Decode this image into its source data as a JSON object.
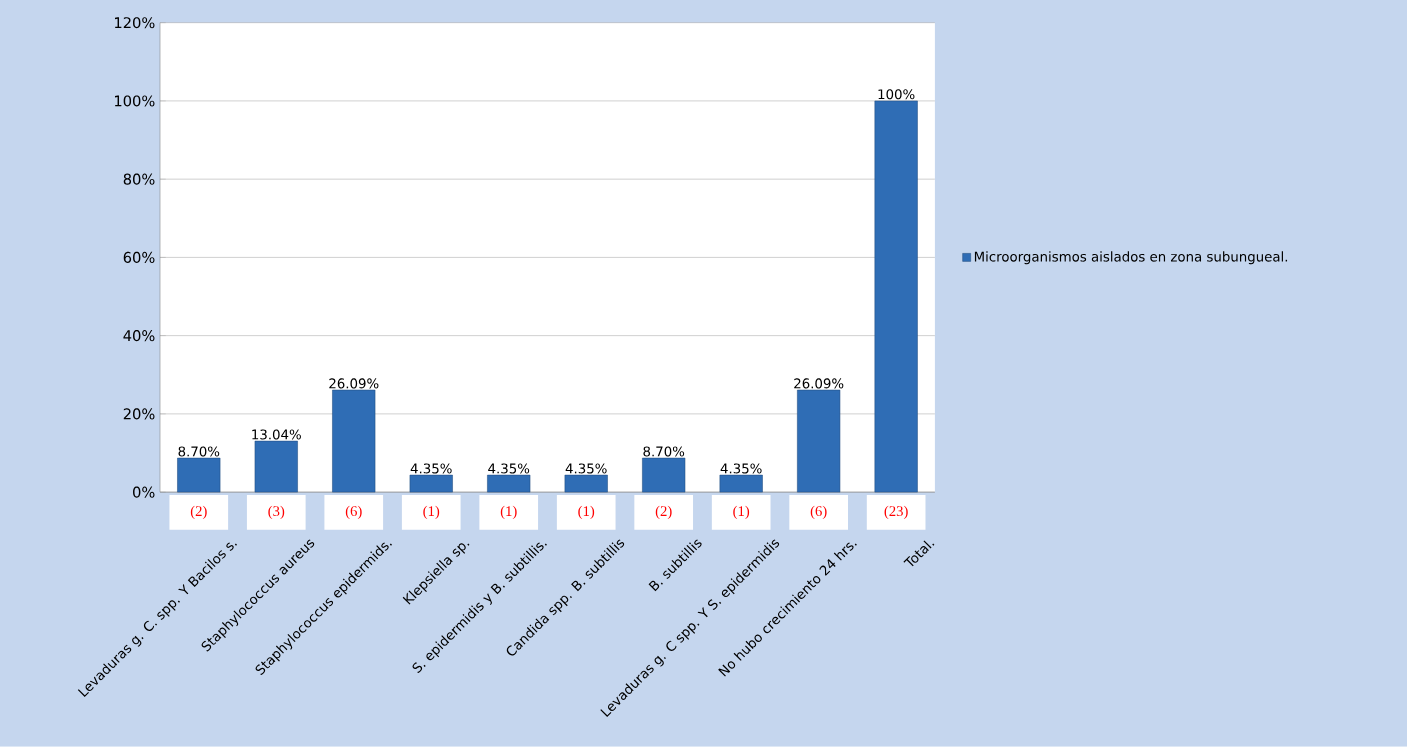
{
  "chart_data": {
    "type": "bar",
    "categories": [
      "Levaduras g. C. spp. Y Bacilos s.",
      "Staphylococcus aureus",
      "Staphylococcus epidermids.",
      "Klepsiella sp.",
      "S. epidermidis y B. subtillis.",
      "Candida spp. B. subtillis",
      "B. subtillis",
      "Levaduras g. C spp. Y S. epidermidis",
      "No hubo crecimiento 24 hrs.",
      "Total."
    ],
    "series": [
      {
        "name": "Microorganismos aislados en zona subungueal.",
        "color": "#2f6db5",
        "values": [
          8.7,
          13.04,
          26.09,
          4.35,
          4.35,
          4.35,
          8.7,
          4.35,
          26.09,
          100
        ],
        "value_labels": [
          "8.70%",
          "13.04%",
          "26.09%",
          "4.35%",
          "4.35%",
          "4.35%",
          "8.70%",
          "4.35%",
          "26.09%",
          "100%"
        ]
      }
    ],
    "ylim": [
      0,
      120
    ],
    "yticks": [
      {
        "value": 0,
        "label": "0%"
      },
      {
        "value": 20,
        "label": "20%"
      },
      {
        "value": 40,
        "label": "40%"
      },
      {
        "value": 60,
        "label": "60%"
      },
      {
        "value": 80,
        "label": "80%"
      },
      {
        "value": 100,
        "label": "100%"
      },
      {
        "value": 120,
        "label": "120%"
      }
    ],
    "grid": "y",
    "legend": "right",
    "annotations": [
      "(2)",
      "(3)",
      "(6)",
      "(1)",
      "(1)",
      "(1)",
      "(2)",
      "(1)",
      "(6)",
      "(23)"
    ]
  }
}
